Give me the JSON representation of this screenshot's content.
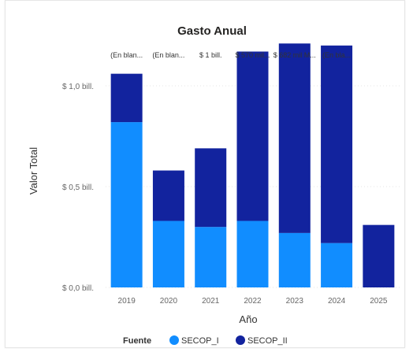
{
  "chart_data": {
    "type": "bar",
    "stacked": true,
    "title": "Gasto Anual",
    "xlabel": "Año",
    "ylabel": "Valor Total",
    "categories": [
      "2019",
      "2020",
      "2021",
      "2022",
      "2023",
      "2024",
      "2025"
    ],
    "y_ticks": [
      {
        "value": 0.0,
        "label": "$ 0,0 bill."
      },
      {
        "value": 0.5,
        "label": "$ 0,5 bill."
      },
      {
        "value": 1.0,
        "label": "$ 1,0 bill."
      }
    ],
    "ylim": [
      0,
      1.25
    ],
    "series": [
      {
        "name": "SECOP_I",
        "color": "#118DFF",
        "values": [
          0.82,
          0.33,
          0.3,
          0.33,
          0.27,
          0.22,
          0.0
        ]
      },
      {
        "name": "SECOP_II",
        "color": "#12239E",
        "values": [
          0.24,
          0.25,
          0.39,
          0.84,
          0.94,
          0.98,
          0.31
        ]
      }
    ],
    "top_labels": [
      "(En blan...",
      "(En blan...",
      "$ 1 bill.",
      "$ 570 mil...",
      "$ 682 mil M...",
      "(En bla...",
      ""
    ],
    "legend": {
      "title": "Fuente",
      "position": "bottom"
    },
    "grid": true
  }
}
